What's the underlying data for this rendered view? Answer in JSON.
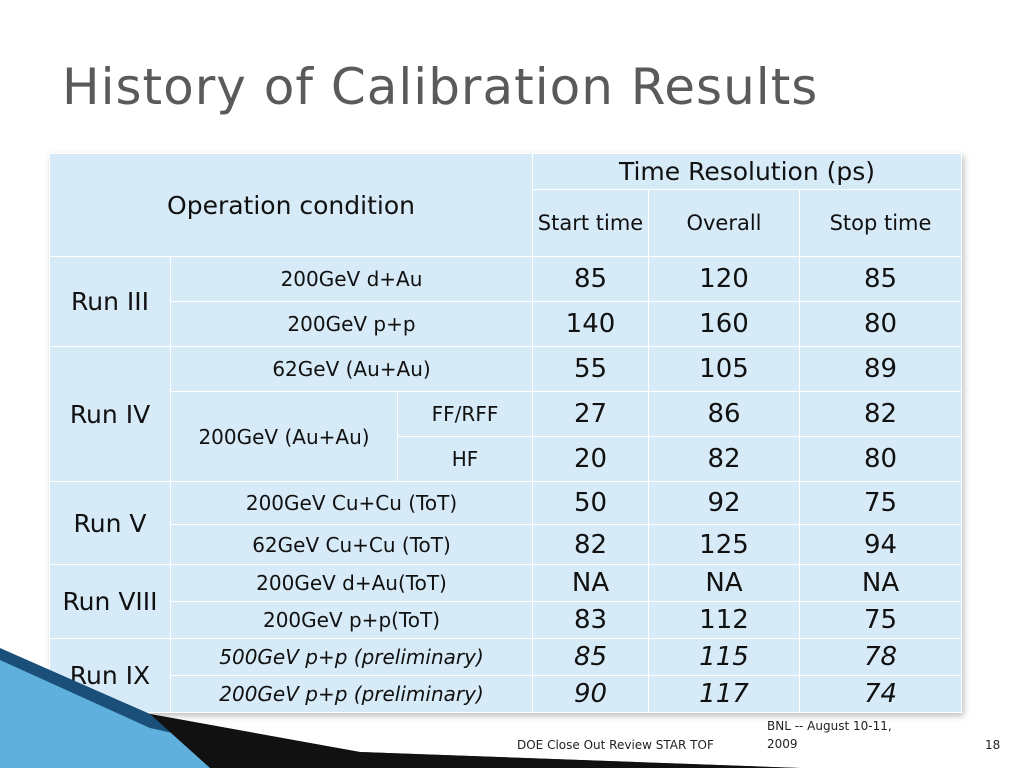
{
  "slide": {
    "title": "History of Calibration Results"
  },
  "table": {
    "header": {
      "operation_condition": "Operation condition",
      "time_resolution": "Time Resolution (ps)",
      "start_time": "Start time",
      "overall": "Overall",
      "stop_time": "Stop time"
    },
    "rows": [
      {
        "run": "Run III",
        "condition": "200GeV d+Au",
        "start": "85",
        "overall": "120",
        "stop": "85"
      },
      {
        "condition": "200GeV p+p",
        "start": "140",
        "overall": "160",
        "stop": "80"
      },
      {
        "run": "Run IV",
        "condition": "62GeV (Au+Au)",
        "start": "55",
        "overall": "105",
        "stop": "89"
      },
      {
        "condition": "200GeV (Au+Au)",
        "sub": "FF/RFF",
        "start": "27",
        "overall": "86",
        "stop": "82"
      },
      {
        "sub": "HF",
        "start": "20",
        "overall": "82",
        "stop": "80"
      },
      {
        "run": "Run V",
        "condition": "200GeV Cu+Cu (ToT)",
        "start": "50",
        "overall": "92",
        "stop": "75"
      },
      {
        "condition": "62GeV Cu+Cu (ToT)",
        "start": "82",
        "overall": "125",
        "stop": "94"
      },
      {
        "run": "Run VIII",
        "condition": "200GeV d+Au(ToT)",
        "start": "NA",
        "overall": "NA",
        "stop": "NA"
      },
      {
        "condition": "200GeV p+p(ToT)",
        "start": "83",
        "overall": "112",
        "stop": "75"
      },
      {
        "run": "Run IX",
        "condition": "500GeV p+p (preliminary)",
        "start": "85",
        "overall": "115",
        "stop": "78"
      },
      {
        "condition": "200GeV p+p (preliminary)",
        "start": "90",
        "overall": "117",
        "stop": "74"
      }
    ]
  },
  "footer": {
    "left": "DOE Close Out Review STAR TOF",
    "center_line1": "BNL -- August 10-11,",
    "center_line2": "2009",
    "page": "18"
  },
  "colors": {
    "title": "#5a5a5a",
    "table_fill": "#d6eaf7",
    "preliminary": "#e00000",
    "deco_dark": "#1a4f7a",
    "deco_light": "#5fb0dc"
  }
}
